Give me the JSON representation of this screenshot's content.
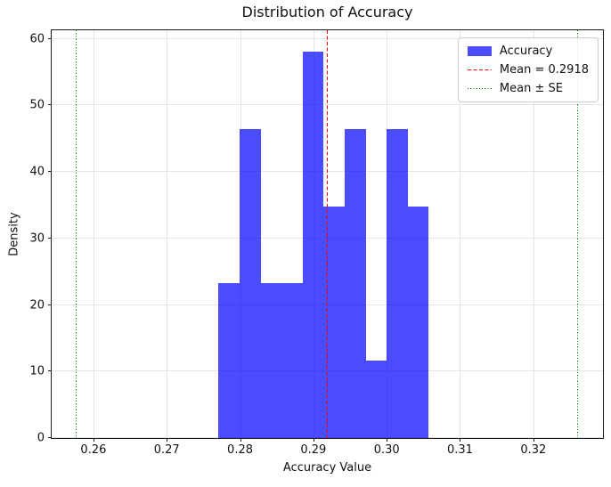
{
  "chart_data": {
    "type": "bar",
    "subtype": "histogram-density",
    "title": "Distribution of Accuracy",
    "xlabel": "Accuracy Value",
    "ylabel": "Density",
    "xlim": [
      0.2543,
      0.3295
    ],
    "ylim": [
      0,
      61.3
    ],
    "grid": true,
    "x_tick_values": [
      0.26,
      0.27,
      0.28,
      0.29,
      0.3,
      0.31,
      0.32
    ],
    "x_tick_labels": [
      "0.26",
      "0.27",
      "0.28",
      "0.29",
      "0.30",
      "0.31",
      "0.32"
    ],
    "y_tick_values": [
      0,
      10,
      20,
      30,
      40,
      50,
      60
    ],
    "y_tick_labels": [
      "0",
      "10",
      "20",
      "30",
      "40",
      "50",
      "60"
    ],
    "series": [
      {
        "name": "Accuracy",
        "n_samples": 30,
        "bin_edges": [
          0.27707,
          0.27994,
          0.28281,
          0.28567,
          0.28854,
          0.29141,
          0.29428,
          0.29715,
          0.30001,
          0.30288,
          0.30575
        ],
        "counts": [
          2,
          4,
          2,
          2,
          5,
          3,
          4,
          1,
          4,
          3
        ],
        "densities": [
          23.24,
          46.48,
          23.24,
          23.24,
          58.1,
          34.86,
          46.48,
          11.62,
          46.48,
          34.86
        ],
        "color": "#0000FF",
        "opacity": 0.7
      }
    ],
    "vlines": [
      {
        "id": "mean",
        "value": 0.2918,
        "color": "#FF0000",
        "style": "dashed",
        "width": 1.5
      },
      {
        "id": "se-lower",
        "value": 0.2576,
        "color": "#008000",
        "style": "dotted",
        "width": 1.2
      },
      {
        "id": "se-upper",
        "value": 0.326,
        "color": "#008000",
        "style": "dotted",
        "width": 1.2
      }
    ],
    "legend": {
      "position": "upper right",
      "entries": [
        {
          "id": "accuracy",
          "swatch": "patch",
          "color": "#0000FF",
          "opacity": 0.7,
          "label": "Accuracy"
        },
        {
          "id": "mean",
          "swatch": "dashed-line",
          "color": "#FF0000",
          "label": "Mean = 0.2918"
        },
        {
          "id": "se",
          "swatch": "dotted-line",
          "color": "#008000",
          "label": "Mean ± SE"
        }
      ]
    },
    "colors": {
      "background": "#FFFFFF",
      "grid": "#E6E6E6",
      "spine": "#1A1A1A",
      "text": "#111111"
    }
  }
}
